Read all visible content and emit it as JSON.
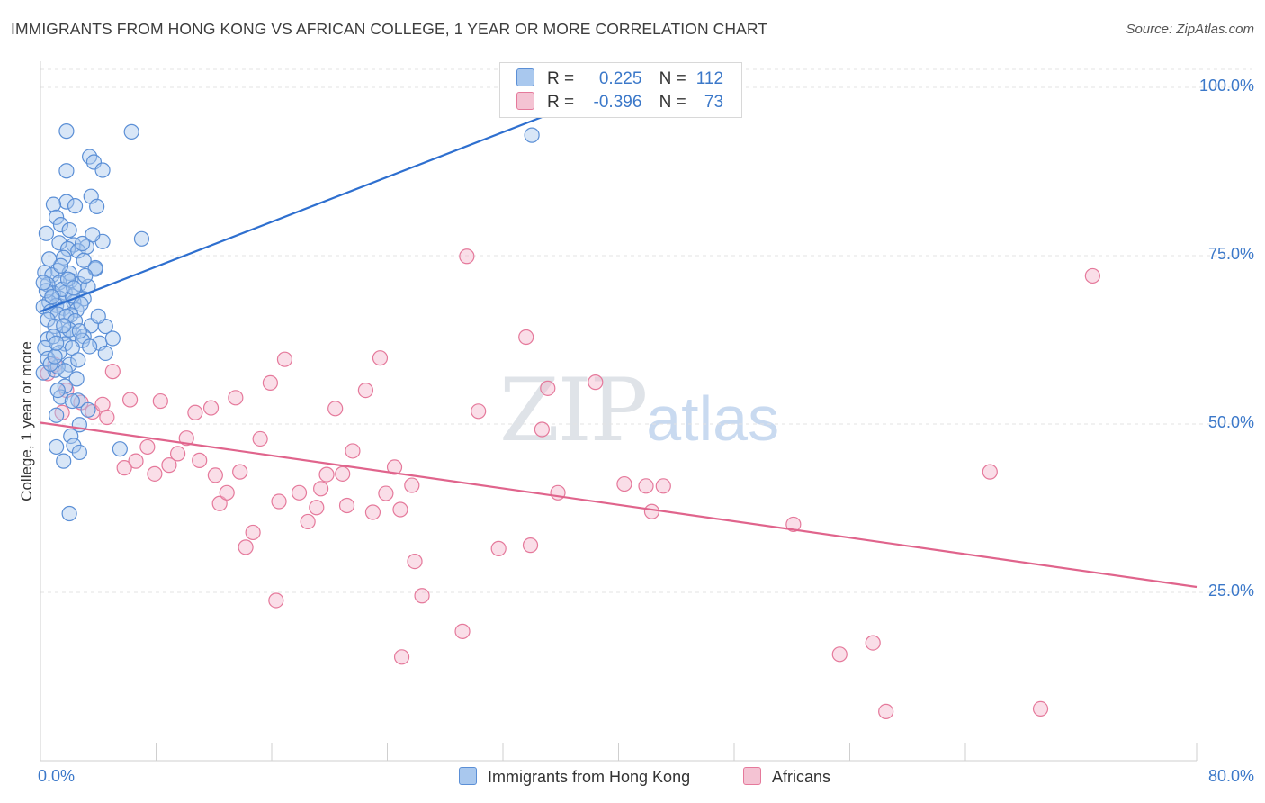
{
  "chart_data": {
    "type": "scatter",
    "title": "IMMIGRANTS FROM HONG KONG VS AFRICAN COLLEGE, 1 YEAR OR MORE CORRELATION CHART",
    "source": "Source: ZipAtlas.com",
    "xlabel": "",
    "ylabel": "College, 1 year or more",
    "xlim": [
      0,
      80
    ],
    "ylim": [
      0,
      100
    ],
    "x_tick_labels": [
      "0.0%",
      "80.0%"
    ],
    "y_tick_labels": [
      {
        "value": 100,
        "label": "100.0%"
      },
      {
        "value": 75,
        "label": "75.0%"
      },
      {
        "value": 50,
        "label": "50.0%"
      },
      {
        "value": 25,
        "label": "25.0%"
      }
    ],
    "grid": true,
    "legend_position": "bottom",
    "stats": [
      {
        "r_label": "R =",
        "r_value": "0.225",
        "n_label": "N =",
        "n_value": "112"
      },
      {
        "r_label": "R =",
        "r_value": "-0.396",
        "n_label": "N =",
        "n_value": "73"
      }
    ],
    "series": [
      {
        "name": "Immigrants from Hong Kong",
        "color": "#5b8fd6",
        "fill": "#a9c8ee",
        "trend": {
          "x": [
            0,
            40
          ],
          "y": [
            66.7,
            100.0
          ]
        },
        "points": [
          [
            1.8,
            93.5
          ],
          [
            6.3,
            93.4
          ],
          [
            34.0,
            92.9
          ],
          [
            3.4,
            89.7
          ],
          [
            3.7,
            88.9
          ],
          [
            1.8,
            87.6
          ],
          [
            4.3,
            87.7
          ],
          [
            3.5,
            83.8
          ],
          [
            1.8,
            83.0
          ],
          [
            0.9,
            82.6
          ],
          [
            2.4,
            82.4
          ],
          [
            3.9,
            82.3
          ],
          [
            1.1,
            80.7
          ],
          [
            1.4,
            79.6
          ],
          [
            0.4,
            78.3
          ],
          [
            2.0,
            78.8
          ],
          [
            4.3,
            77.1
          ],
          [
            7.0,
            77.5
          ],
          [
            1.3,
            76.9
          ],
          [
            2.3,
            76.6
          ],
          [
            1.9,
            76.0
          ],
          [
            3.2,
            76.3
          ],
          [
            2.6,
            75.7
          ],
          [
            1.6,
            74.7
          ],
          [
            3.8,
            73.0
          ],
          [
            1.2,
            72.8
          ],
          [
            0.3,
            72.5
          ],
          [
            0.8,
            72.1
          ],
          [
            2.0,
            72.4
          ],
          [
            2.1,
            71.3
          ],
          [
            1.3,
            71.0
          ],
          [
            2.7,
            70.8
          ],
          [
            3.3,
            70.4
          ],
          [
            0.5,
            70.7
          ],
          [
            1.7,
            69.5
          ],
          [
            0.9,
            69.4
          ],
          [
            3.0,
            68.6
          ],
          [
            1.3,
            68.7
          ],
          [
            0.6,
            68.1
          ],
          [
            2.3,
            68.1
          ],
          [
            1.1,
            67.6
          ],
          [
            0.2,
            67.4
          ],
          [
            1.6,
            67.2
          ],
          [
            2.5,
            66.9
          ],
          [
            0.7,
            66.7
          ],
          [
            1.2,
            66.3
          ],
          [
            2.1,
            66.2
          ],
          [
            3.5,
            64.6
          ],
          [
            4.5,
            64.5
          ],
          [
            1.6,
            63.4
          ],
          [
            2.3,
            63.4
          ],
          [
            3.0,
            63.0
          ],
          [
            2.9,
            62.4
          ],
          [
            0.5,
            62.6
          ],
          [
            1.7,
            61.9
          ],
          [
            4.1,
            62.0
          ],
          [
            2.2,
            61.3
          ],
          [
            0.3,
            61.3
          ],
          [
            1.3,
            60.6
          ],
          [
            0.5,
            59.7
          ],
          [
            2.0,
            58.8
          ],
          [
            1.0,
            58.0
          ],
          [
            1.2,
            58.5
          ],
          [
            1.7,
            57.9
          ],
          [
            0.2,
            57.6
          ],
          [
            2.5,
            56.7
          ],
          [
            1.7,
            55.6
          ],
          [
            1.4,
            54.0
          ],
          [
            2.6,
            53.5
          ],
          [
            2.2,
            53.4
          ],
          [
            3.3,
            52.1
          ],
          [
            1.1,
            51.3
          ],
          [
            2.7,
            49.9
          ],
          [
            2.1,
            48.2
          ],
          [
            2.3,
            46.8
          ],
          [
            2.7,
            45.8
          ],
          [
            5.5,
            46.3
          ],
          [
            1.1,
            46.6
          ],
          [
            1.6,
            44.5
          ],
          [
            2.0,
            36.7
          ],
          [
            3.8,
            73.2
          ],
          [
            0.5,
            65.5
          ],
          [
            2.2,
            69.0
          ],
          [
            1.5,
            70.0
          ],
          [
            1.0,
            64.5
          ],
          [
            2.8,
            67.8
          ],
          [
            3.1,
            72.0
          ],
          [
            0.7,
            58.9
          ],
          [
            4.5,
            60.5
          ],
          [
            5.0,
            62.7
          ],
          [
            1.8,
            66.0
          ],
          [
            0.9,
            63.0
          ],
          [
            2.4,
            65.3
          ],
          [
            1.4,
            73.5
          ],
          [
            3.6,
            78.1
          ],
          [
            0.6,
            74.5
          ],
          [
            2.9,
            76.8
          ],
          [
            1.0,
            60.0
          ],
          [
            2.0,
            64.0
          ],
          [
            0.4,
            69.8
          ],
          [
            1.9,
            71.5
          ],
          [
            2.6,
            59.5
          ],
          [
            3.4,
            61.5
          ],
          [
            4.0,
            66.0
          ],
          [
            1.2,
            55.0
          ],
          [
            0.8,
            68.9
          ],
          [
            1.6,
            64.6
          ],
          [
            2.3,
            70.2
          ],
          [
            3.0,
            74.3
          ],
          [
            0.2,
            71.0
          ],
          [
            1.1,
            62.0
          ],
          [
            2.7,
            63.8
          ]
        ]
      },
      {
        "name": "Africans",
        "color": "#e5799b",
        "fill": "#f4b6cb",
        "trend": {
          "x": [
            0,
            80
          ],
          "y": [
            50.2,
            25.8
          ]
        },
        "points": [
          [
            0.5,
            57.5
          ],
          [
            1.0,
            58.8
          ],
          [
            1.8,
            55.0
          ],
          [
            2.8,
            53.2
          ],
          [
            3.6,
            51.8
          ],
          [
            4.3,
            52.9
          ],
          [
            4.6,
            51.0
          ],
          [
            5.0,
            57.8
          ],
          [
            6.2,
            53.6
          ],
          [
            6.6,
            44.5
          ],
          [
            5.8,
            43.5
          ],
          [
            7.4,
            46.6
          ],
          [
            7.9,
            42.6
          ],
          [
            8.3,
            53.4
          ],
          [
            9.5,
            45.6
          ],
          [
            10.1,
            47.9
          ],
          [
            10.7,
            51.7
          ],
          [
            11.0,
            44.6
          ],
          [
            11.8,
            52.4
          ],
          [
            12.1,
            42.4
          ],
          [
            12.4,
            38.2
          ],
          [
            12.9,
            39.8
          ],
          [
            13.5,
            53.9
          ],
          [
            14.2,
            31.7
          ],
          [
            14.7,
            33.9
          ],
          [
            15.2,
            47.8
          ],
          [
            15.9,
            56.1
          ],
          [
            16.3,
            23.8
          ],
          [
            16.9,
            59.6
          ],
          [
            17.9,
            39.8
          ],
          [
            18.5,
            35.5
          ],
          [
            19.1,
            37.6
          ],
          [
            19.4,
            40.4
          ],
          [
            19.8,
            42.5
          ],
          [
            20.4,
            52.3
          ],
          [
            20.9,
            42.6
          ],
          [
            21.2,
            37.9
          ],
          [
            21.6,
            46.0
          ],
          [
            22.5,
            55.0
          ],
          [
            23.0,
            36.9
          ],
          [
            23.5,
            59.8
          ],
          [
            23.9,
            39.7
          ],
          [
            24.5,
            43.6
          ],
          [
            24.9,
            37.3
          ],
          [
            25.7,
            40.9
          ],
          [
            25.9,
            29.6
          ],
          [
            26.4,
            24.5
          ],
          [
            25.0,
            15.4
          ],
          [
            29.5,
            74.9
          ],
          [
            30.3,
            51.9
          ],
          [
            29.2,
            19.2
          ],
          [
            31.7,
            31.5
          ],
          [
            33.6,
            62.9
          ],
          [
            33.9,
            32.0
          ],
          [
            34.7,
            49.2
          ],
          [
            35.1,
            55.3
          ],
          [
            35.8,
            39.8
          ],
          [
            38.4,
            56.2
          ],
          [
            40.4,
            41.1
          ],
          [
            41.9,
            40.8
          ],
          [
            42.3,
            37.0
          ],
          [
            43.1,
            40.8
          ],
          [
            52.1,
            35.1
          ],
          [
            55.3,
            15.8
          ],
          [
            57.6,
            17.5
          ],
          [
            58.5,
            7.3
          ],
          [
            65.7,
            42.9
          ],
          [
            69.2,
            7.7
          ],
          [
            72.8,
            72.0
          ],
          [
            1.5,
            51.7
          ],
          [
            8.9,
            43.9
          ],
          [
            13.8,
            42.9
          ],
          [
            16.5,
            38.5
          ]
        ]
      }
    ]
  }
}
